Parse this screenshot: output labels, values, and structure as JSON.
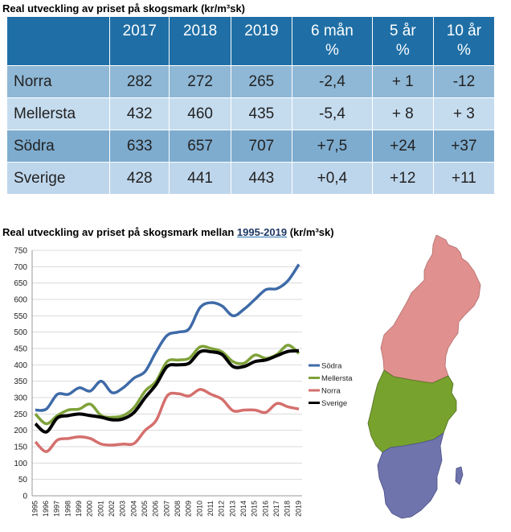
{
  "table_title": "Real utveckling av priset på skogsmark (kr/m³sk)",
  "table": {
    "headers": [
      {
        "label": "",
        "sub": ""
      },
      {
        "label": "2017",
        "sub": ""
      },
      {
        "label": "2018",
        "sub": ""
      },
      {
        "label": "2019",
        "sub": ""
      },
      {
        "label": "6 mån",
        "sub": "%"
      },
      {
        "label": "5 år",
        "sub": "%"
      },
      {
        "label": "10 år",
        "sub": "%"
      }
    ],
    "rows": [
      [
        "Norra",
        "282",
        "272",
        "265",
        "-2,4",
        "+ 1",
        "-12"
      ],
      [
        "Mellersta",
        "432",
        "460",
        "435",
        "-5,4",
        "+ 8",
        "+ 3"
      ],
      [
        "Södra",
        "633",
        "657",
        "707",
        "+7,5",
        "+24",
        "+37"
      ],
      [
        "Sverige",
        "428",
        "441",
        "443",
        "+0,4",
        "+12",
        "+11"
      ]
    ]
  },
  "chart_title_prefix": "Real utveckling av priset på skogsmark mellan ",
  "chart_title_years": "1995-2019",
  "chart_title_suffix": " (kr/m³sk)",
  "chart_data": {
    "type": "line",
    "x": [
      "1995",
      "1996",
      "1997",
      "1998",
      "1999",
      "2000",
      "2001",
      "2002",
      "2003",
      "2004",
      "2005",
      "2006",
      "2007",
      "2008",
      "2009",
      "2010",
      "2011",
      "2012",
      "2013",
      "2014",
      "2015",
      "2016",
      "2017",
      "2018",
      "2019"
    ],
    "ylim": [
      0,
      750
    ],
    "ytick_step": 50,
    "grid": true,
    "legend_position": "right",
    "series": [
      {
        "name": "Södra",
        "color": "#3e6aa8",
        "values": [
          262,
          265,
          310,
          310,
          330,
          320,
          350,
          315,
          330,
          360,
          380,
          440,
          490,
          500,
          510,
          575,
          590,
          580,
          550,
          570,
          600,
          630,
          633,
          657,
          707
        ]
      },
      {
        "name": "Mellersta",
        "color": "#7fa23a",
        "values": [
          250,
          220,
          245,
          262,
          265,
          280,
          245,
          240,
          245,
          270,
          320,
          350,
          410,
          415,
          420,
          455,
          450,
          440,
          410,
          405,
          430,
          420,
          432,
          460,
          435
        ]
      },
      {
        "name": "Norra",
        "color": "#d46f6d",
        "values": [
          165,
          135,
          170,
          175,
          180,
          175,
          158,
          155,
          158,
          160,
          200,
          230,
          305,
          312,
          305,
          325,
          310,
          295,
          260,
          262,
          262,
          255,
          282,
          272,
          265
        ]
      },
      {
        "name": "Sverige",
        "color": "#000000",
        "values": [
          220,
          195,
          238,
          245,
          250,
          245,
          240,
          232,
          235,
          255,
          300,
          340,
          395,
          400,
          405,
          440,
          440,
          432,
          395,
          395,
          410,
          415,
          428,
          441,
          443
        ]
      }
    ]
  },
  "map": {
    "regions": [
      {
        "name": "Norra",
        "color": "#e0908e"
      },
      {
        "name": "Mellersta",
        "color": "#78a22e"
      },
      {
        "name": "Södra",
        "color": "#6f74ad"
      }
    ]
  }
}
